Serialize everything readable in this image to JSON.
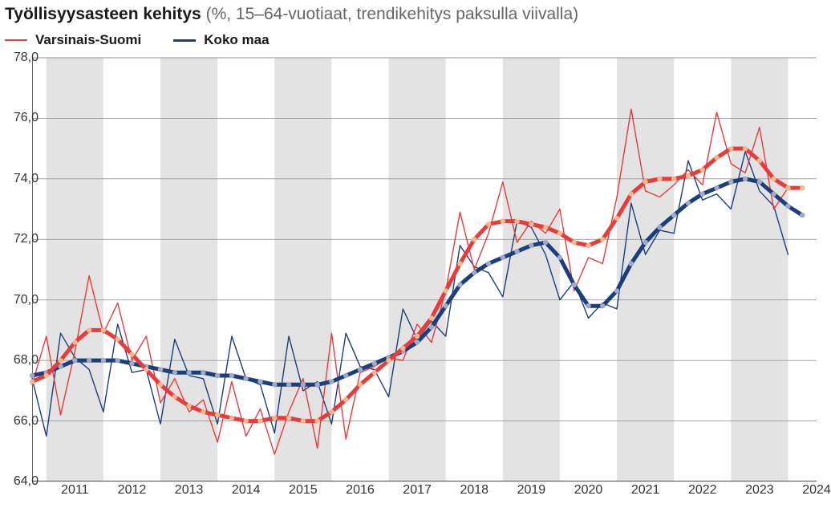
{
  "title_bold": "Työllisyysasteen kehitys",
  "title_rest": " (%, 15–64-vuotiaat, trendikehitys paksulla viivalla)",
  "legend": {
    "series_a": "Varsinais-Suomi",
    "series_b": "Koko maa"
  },
  "chart": {
    "type": "line",
    "background_color": "#ffffff",
    "band_color": "#e3e3e3",
    "grid_color": "#9a9a9a",
    "axis_color": "#666666",
    "label_color": "#333333",
    "title_fontsize": 21,
    "legend_fontsize": 17,
    "tick_fontsize": 16,
    "ylim": [
      64.0,
      78.0
    ],
    "ytick_step": 2.0,
    "yticks": [
      "64,0",
      "66,0",
      "68,0",
      "70,0",
      "72,0",
      "74,0",
      "76,0",
      "78,0"
    ],
    "x_start": 2010.75,
    "x_end": 2024.5,
    "x_year_bands": [
      2011,
      2012,
      2013,
      2014,
      2015,
      2016,
      2017,
      2018,
      2019,
      2020,
      2021,
      2022,
      2023,
      2024
    ],
    "x_labels": [
      "2011",
      "2012",
      "2013",
      "2014",
      "2015",
      "2016",
      "2017",
      "2018",
      "2019",
      "2020",
      "2021",
      "2022",
      "2023",
      "2024"
    ],
    "series": {
      "varsinais_thin": {
        "color": "#e73c3c",
        "width": 1.4,
        "dots": false,
        "values": [
          [
            2010.75,
            67.2
          ],
          [
            2011.0,
            68.8
          ],
          [
            2011.25,
            66.2
          ],
          [
            2011.5,
            68.3
          ],
          [
            2011.75,
            70.8
          ],
          [
            2012.0,
            68.9
          ],
          [
            2012.25,
            69.9
          ],
          [
            2012.5,
            68.0
          ],
          [
            2012.75,
            68.8
          ],
          [
            2013.0,
            66.6
          ],
          [
            2013.25,
            67.4
          ],
          [
            2013.5,
            66.3
          ],
          [
            2013.75,
            66.7
          ],
          [
            2014.0,
            65.3
          ],
          [
            2014.25,
            67.3
          ],
          [
            2014.5,
            65.5
          ],
          [
            2014.75,
            66.4
          ],
          [
            2015.0,
            64.9
          ],
          [
            2015.25,
            66.3
          ],
          [
            2015.5,
            67.4
          ],
          [
            2015.75,
            65.1
          ],
          [
            2016.0,
            68.9
          ],
          [
            2016.25,
            65.4
          ],
          [
            2016.5,
            67.6
          ],
          [
            2016.75,
            67.8
          ],
          [
            2017.0,
            68.1
          ],
          [
            2017.25,
            68.0
          ],
          [
            2017.5,
            69.2
          ],
          [
            2017.75,
            68.6
          ],
          [
            2018.0,
            70.3
          ],
          [
            2018.25,
            72.9
          ],
          [
            2018.5,
            71.0
          ],
          [
            2018.75,
            72.2
          ],
          [
            2019.0,
            73.9
          ],
          [
            2019.25,
            71.9
          ],
          [
            2019.5,
            72.6
          ],
          [
            2019.75,
            72.2
          ],
          [
            2020.0,
            73.0
          ],
          [
            2020.25,
            70.3
          ],
          [
            2020.5,
            71.4
          ],
          [
            2020.75,
            71.2
          ],
          [
            2021.0,
            73.4
          ],
          [
            2021.25,
            76.3
          ],
          [
            2021.5,
            73.6
          ],
          [
            2021.75,
            73.4
          ],
          [
            2022.0,
            73.8
          ],
          [
            2022.25,
            74.3
          ],
          [
            2022.5,
            73.8
          ],
          [
            2022.75,
            76.2
          ],
          [
            2023.0,
            74.5
          ],
          [
            2023.25,
            74.2
          ],
          [
            2023.5,
            75.7
          ],
          [
            2023.75,
            73.0
          ],
          [
            2024.0,
            73.7
          ]
        ]
      },
      "varsinais_trend": {
        "color": "#e73c3c",
        "width": 5,
        "dots": true,
        "dot_color": "#f2b890",
        "dot_radius": 3.2,
        "values": [
          [
            2010.75,
            67.3
          ],
          [
            2011.0,
            67.5
          ],
          [
            2011.25,
            68.0
          ],
          [
            2011.5,
            68.6
          ],
          [
            2011.75,
            69.0
          ],
          [
            2012.0,
            69.0
          ],
          [
            2012.25,
            68.7
          ],
          [
            2012.5,
            68.2
          ],
          [
            2012.75,
            67.7
          ],
          [
            2013.0,
            67.2
          ],
          [
            2013.25,
            66.8
          ],
          [
            2013.5,
            66.5
          ],
          [
            2013.75,
            66.3
          ],
          [
            2014.0,
            66.2
          ],
          [
            2014.25,
            66.1
          ],
          [
            2014.5,
            66.0
          ],
          [
            2014.75,
            66.0
          ],
          [
            2015.0,
            66.1
          ],
          [
            2015.25,
            66.1
          ],
          [
            2015.5,
            66.0
          ],
          [
            2015.75,
            66.0
          ],
          [
            2016.0,
            66.3
          ],
          [
            2016.25,
            66.7
          ],
          [
            2016.5,
            67.2
          ],
          [
            2016.75,
            67.6
          ],
          [
            2017.0,
            68.0
          ],
          [
            2017.25,
            68.4
          ],
          [
            2017.5,
            68.8
          ],
          [
            2017.75,
            69.4
          ],
          [
            2018.0,
            70.3
          ],
          [
            2018.25,
            71.2
          ],
          [
            2018.5,
            72.0
          ],
          [
            2018.75,
            72.5
          ],
          [
            2019.0,
            72.6
          ],
          [
            2019.25,
            72.6
          ],
          [
            2019.5,
            72.5
          ],
          [
            2019.75,
            72.4
          ],
          [
            2020.0,
            72.2
          ],
          [
            2020.25,
            71.9
          ],
          [
            2020.5,
            71.8
          ],
          [
            2020.75,
            72.0
          ],
          [
            2021.0,
            72.7
          ],
          [
            2021.25,
            73.5
          ],
          [
            2021.5,
            73.9
          ],
          [
            2021.75,
            74.0
          ],
          [
            2022.0,
            74.0
          ],
          [
            2022.25,
            74.1
          ],
          [
            2022.5,
            74.3
          ],
          [
            2022.75,
            74.7
          ],
          [
            2023.0,
            75.0
          ],
          [
            2023.25,
            75.0
          ],
          [
            2023.5,
            74.6
          ],
          [
            2023.75,
            74.0
          ],
          [
            2024.0,
            73.7
          ],
          [
            2024.25,
            73.7
          ]
        ]
      },
      "koko_thin": {
        "color": "#1b3f7a",
        "width": 1.4,
        "dots": false,
        "values": [
          [
            2010.75,
            67.4
          ],
          [
            2011.0,
            65.5
          ],
          [
            2011.25,
            68.9
          ],
          [
            2011.5,
            68.1
          ],
          [
            2011.75,
            67.7
          ],
          [
            2012.0,
            66.3
          ],
          [
            2012.25,
            69.2
          ],
          [
            2012.5,
            67.6
          ],
          [
            2012.75,
            67.7
          ],
          [
            2013.0,
            65.9
          ],
          [
            2013.25,
            68.7
          ],
          [
            2013.5,
            67.5
          ],
          [
            2013.75,
            67.4
          ],
          [
            2014.0,
            65.9
          ],
          [
            2014.25,
            68.8
          ],
          [
            2014.5,
            67.4
          ],
          [
            2014.75,
            67.2
          ],
          [
            2015.0,
            65.6
          ],
          [
            2015.25,
            68.8
          ],
          [
            2015.5,
            67.0
          ],
          [
            2015.75,
            67.3
          ],
          [
            2016.0,
            65.9
          ],
          [
            2016.25,
            68.9
          ],
          [
            2016.5,
            67.8
          ],
          [
            2016.75,
            67.7
          ],
          [
            2017.0,
            66.8
          ],
          [
            2017.25,
            69.7
          ],
          [
            2017.5,
            68.7
          ],
          [
            2017.75,
            69.3
          ],
          [
            2018.0,
            68.8
          ],
          [
            2018.25,
            71.8
          ],
          [
            2018.5,
            71.1
          ],
          [
            2018.75,
            70.9
          ],
          [
            2019.0,
            70.1
          ],
          [
            2019.25,
            72.6
          ],
          [
            2019.5,
            72.4
          ],
          [
            2019.75,
            71.5
          ],
          [
            2020.0,
            70.0
          ],
          [
            2020.25,
            70.6
          ],
          [
            2020.5,
            69.4
          ],
          [
            2020.75,
            69.9
          ],
          [
            2021.0,
            69.7
          ],
          [
            2021.25,
            73.2
          ],
          [
            2021.5,
            71.5
          ],
          [
            2021.75,
            72.3
          ],
          [
            2022.0,
            72.2
          ],
          [
            2022.25,
            74.6
          ],
          [
            2022.5,
            73.3
          ],
          [
            2022.75,
            73.5
          ],
          [
            2023.0,
            73.0
          ],
          [
            2023.25,
            74.9
          ],
          [
            2023.5,
            73.6
          ],
          [
            2023.75,
            73.1
          ],
          [
            2024.0,
            71.5
          ]
        ]
      },
      "koko_trend": {
        "color": "#1b3f7a",
        "width": 5,
        "dots": true,
        "dot_color": "#9fa9c9",
        "dot_radius": 3.2,
        "values": [
          [
            2010.75,
            67.5
          ],
          [
            2011.0,
            67.6
          ],
          [
            2011.25,
            67.8
          ],
          [
            2011.5,
            68.0
          ],
          [
            2011.75,
            68.0
          ],
          [
            2012.0,
            68.0
          ],
          [
            2012.25,
            68.0
          ],
          [
            2012.5,
            67.9
          ],
          [
            2012.75,
            67.8
          ],
          [
            2013.0,
            67.7
          ],
          [
            2013.25,
            67.6
          ],
          [
            2013.5,
            67.6
          ],
          [
            2013.75,
            67.6
          ],
          [
            2014.0,
            67.5
          ],
          [
            2014.25,
            67.5
          ],
          [
            2014.5,
            67.4
          ],
          [
            2014.75,
            67.3
          ],
          [
            2015.0,
            67.2
          ],
          [
            2015.25,
            67.2
          ],
          [
            2015.5,
            67.2
          ],
          [
            2015.75,
            67.2
          ],
          [
            2016.0,
            67.3
          ],
          [
            2016.25,
            67.5
          ],
          [
            2016.5,
            67.7
          ],
          [
            2016.75,
            67.9
          ],
          [
            2017.0,
            68.1
          ],
          [
            2017.25,
            68.3
          ],
          [
            2017.5,
            68.6
          ],
          [
            2017.75,
            69.1
          ],
          [
            2018.0,
            69.8
          ],
          [
            2018.25,
            70.5
          ],
          [
            2018.5,
            70.9
          ],
          [
            2018.75,
            71.2
          ],
          [
            2019.0,
            71.4
          ],
          [
            2019.25,
            71.6
          ],
          [
            2019.5,
            71.8
          ],
          [
            2019.75,
            71.9
          ],
          [
            2020.0,
            71.4
          ],
          [
            2020.25,
            70.5
          ],
          [
            2020.5,
            69.8
          ],
          [
            2020.75,
            69.8
          ],
          [
            2021.0,
            70.3
          ],
          [
            2021.25,
            71.2
          ],
          [
            2021.5,
            71.9
          ],
          [
            2021.75,
            72.4
          ],
          [
            2022.0,
            72.8
          ],
          [
            2022.25,
            73.2
          ],
          [
            2022.5,
            73.5
          ],
          [
            2022.75,
            73.7
          ],
          [
            2023.0,
            73.9
          ],
          [
            2023.25,
            74.0
          ],
          [
            2023.5,
            73.9
          ],
          [
            2023.75,
            73.5
          ],
          [
            2024.0,
            73.1
          ],
          [
            2024.25,
            72.8
          ]
        ]
      }
    }
  }
}
